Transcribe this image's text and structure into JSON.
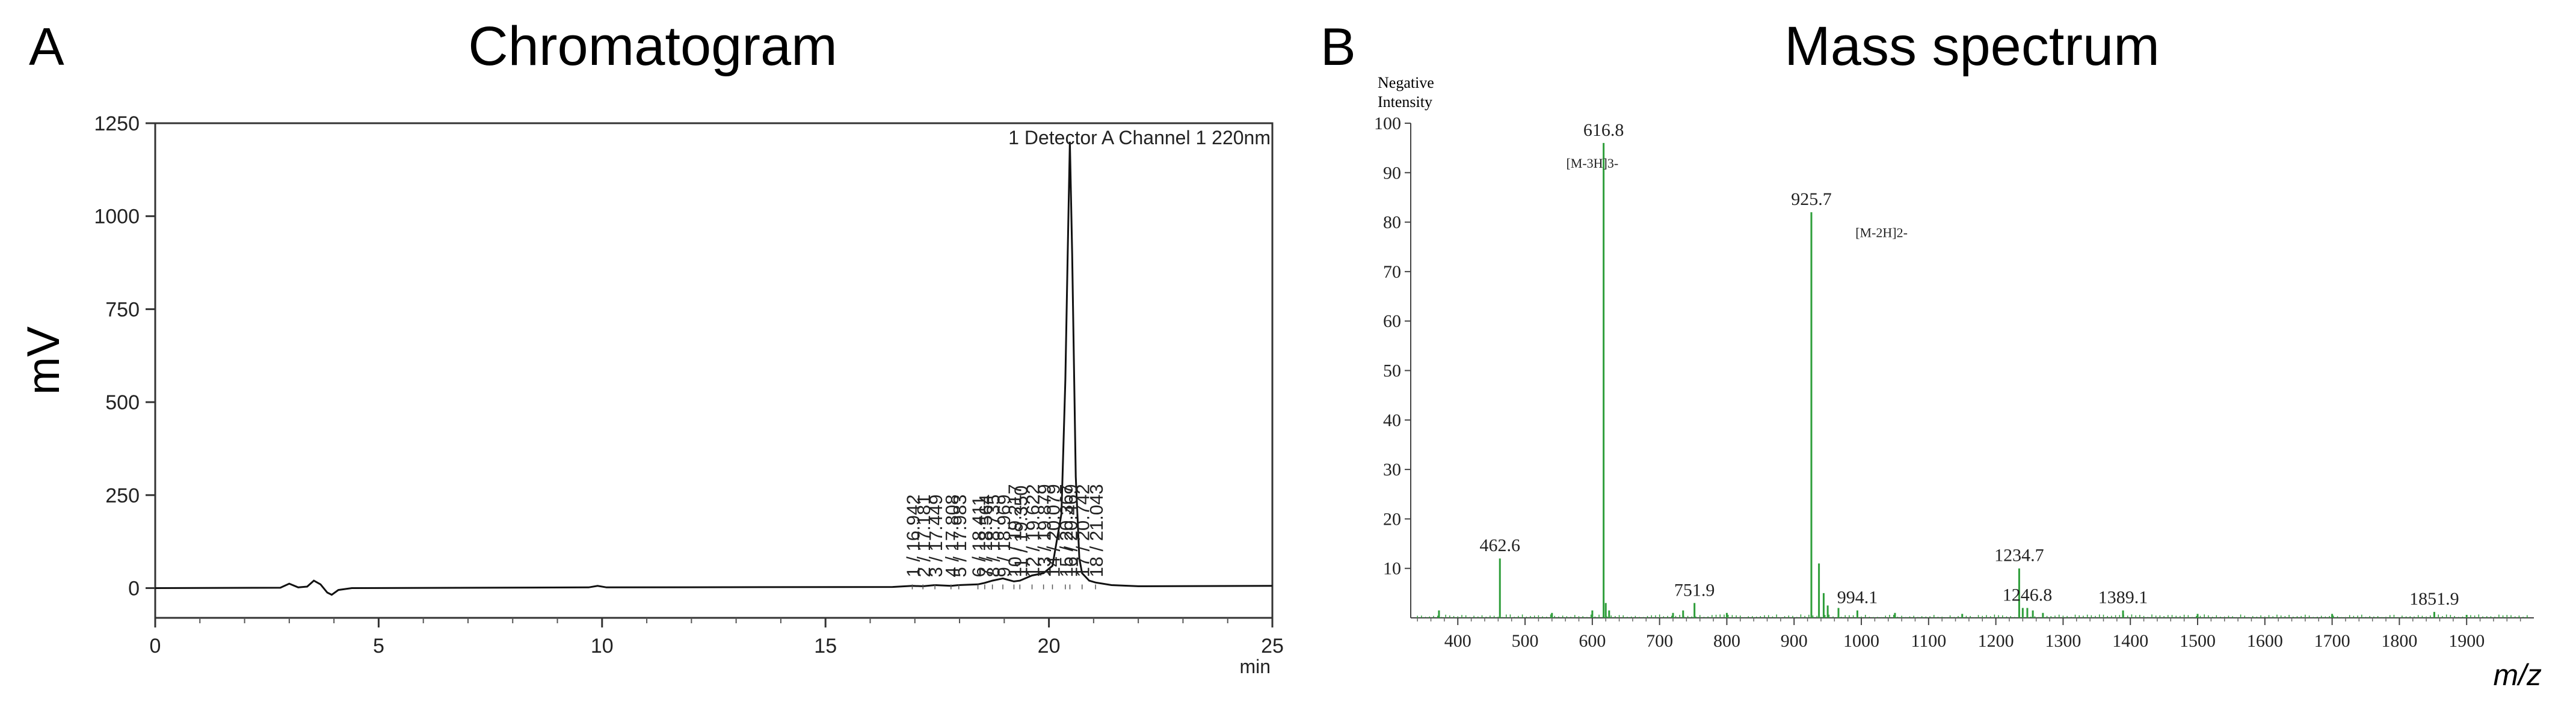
{
  "panel_a": {
    "letter": "A",
    "title": "Chromatogram",
    "ylabel": "mV",
    "xunit": "min",
    "detector": "1 Detector A Channel 1 220nm"
  },
  "panel_b": {
    "letter": "B",
    "title": "Mass spectrum",
    "mode_line1": "Negative",
    "mode_line2": "Intensity",
    "xlabel": "m/z"
  },
  "chart_data": [
    {
      "type": "line",
      "panel": "A",
      "title": "Chromatogram",
      "ylabel": "mV",
      "xlabel": "min",
      "xlim": [
        0,
        25
      ],
      "ylim": [
        -80,
        1250
      ],
      "xticks": [
        0,
        5,
        10,
        15,
        20,
        25
      ],
      "yticks": [
        0,
        250,
        500,
        750,
        1000,
        1250
      ],
      "grid": false,
      "trace": [
        [
          0,
          0
        ],
        [
          2.8,
          1
        ],
        [
          3.0,
          12
        ],
        [
          3.2,
          2
        ],
        [
          3.4,
          4
        ],
        [
          3.55,
          20
        ],
        [
          3.7,
          10
        ],
        [
          3.85,
          -12
        ],
        [
          3.95,
          -18
        ],
        [
          4.1,
          -5
        ],
        [
          4.4,
          0
        ],
        [
          9.7,
          2
        ],
        [
          9.9,
          6
        ],
        [
          10.1,
          2
        ],
        [
          16.5,
          3
        ],
        [
          16.942,
          6
        ],
        [
          17.181,
          5
        ],
        [
          17.449,
          8
        ],
        [
          17.808,
          6
        ],
        [
          17.983,
          8
        ],
        [
          18.411,
          10
        ],
        [
          18.564,
          14
        ],
        [
          18.735,
          20
        ],
        [
          18.969,
          26
        ],
        [
          19.217,
          18
        ],
        [
          19.35,
          20
        ],
        [
          19.622,
          34
        ],
        [
          19.879,
          40
        ],
        [
          20.079,
          60
        ],
        [
          20.28,
          200
        ],
        [
          20.367,
          560
        ],
        [
          20.42,
          900
        ],
        [
          20.469,
          1200
        ],
        [
          20.52,
          900
        ],
        [
          20.6,
          300
        ],
        [
          20.68,
          80
        ],
        [
          20.742,
          40
        ],
        [
          20.9,
          20
        ],
        [
          21.043,
          15
        ],
        [
          21.4,
          8
        ],
        [
          22,
          5
        ],
        [
          25,
          6
        ]
      ],
      "peak_labels": [
        {
          "label": "1 / 16.942",
          "x": 16.942
        },
        {
          "label": "2 / 17.181",
          "x": 17.181
        },
        {
          "label": "3 / 17.449",
          "x": 17.449
        },
        {
          "label": "4 / 17.808",
          "x": 17.808
        },
        {
          "label": "5 / 17.983",
          "x": 17.983
        },
        {
          "label": "6 / 18.411",
          "x": 18.411
        },
        {
          "label": "7 / 18.564",
          "x": 18.564
        },
        {
          "label": "8 / 18.735",
          "x": 18.735
        },
        {
          "label": "9 / 18.969",
          "x": 18.969
        },
        {
          "label": "10 / 19.217",
          "x": 19.217
        },
        {
          "label": "11 / 19.350",
          "x": 19.35
        },
        {
          "label": "12 / 19.622",
          "x": 19.622
        },
        {
          "label": "13 / 19.879",
          "x": 19.879
        },
        {
          "label": "14 / 20.079",
          "x": 20.079
        },
        {
          "label": "15 / 20.367",
          "x": 20.367
        },
        {
          "label": "16 / 20.469",
          "x": 20.469
        },
        {
          "label": "17 / 20.742",
          "x": 20.742
        },
        {
          "label": "18 / 21.043",
          "x": 21.043
        }
      ],
      "annotation": "1 Detector A Channel 1 220nm"
    },
    {
      "type": "bar",
      "panel": "B",
      "title": "Mass spectrum",
      "ylabel": "Negative Intensity",
      "xlabel": "m/z",
      "xlim": [
        330,
        2000
      ],
      "ylim": [
        0,
        100
      ],
      "xticks": [
        400,
        500,
        600,
        700,
        800,
        900,
        1000,
        1100,
        1200,
        1300,
        1400,
        1500,
        1600,
        1700,
        1800,
        1900
      ],
      "yticks": [
        10,
        20,
        30,
        40,
        50,
        60,
        70,
        80,
        90,
        100
      ],
      "grid": false,
      "color": "#2e9e3a",
      "peaks": [
        {
          "mz": 372,
          "intensity": 1.5
        },
        {
          "mz": 462.6,
          "intensity": 12,
          "label": "462.6"
        },
        {
          "mz": 540,
          "intensity": 1
        },
        {
          "mz": 600,
          "intensity": 1.5
        },
        {
          "mz": 616.8,
          "intensity": 96,
          "label": "616.8"
        },
        {
          "mz": 620,
          "intensity": 3
        },
        {
          "mz": 625,
          "intensity": 1.5
        },
        {
          "mz": 720,
          "intensity": 1
        },
        {
          "mz": 735,
          "intensity": 1.5
        },
        {
          "mz": 751.9,
          "intensity": 3,
          "label": "751.9"
        },
        {
          "mz": 800,
          "intensity": 1
        },
        {
          "mz": 925.7,
          "intensity": 82,
          "label": "925.7"
        },
        {
          "mz": 937,
          "intensity": 11
        },
        {
          "mz": 944,
          "intensity": 5
        },
        {
          "mz": 950,
          "intensity": 2.5
        },
        {
          "mz": 966,
          "intensity": 2
        },
        {
          "mz": 994.1,
          "intensity": 1.5,
          "label": "994.1"
        },
        {
          "mz": 1050,
          "intensity": 1
        },
        {
          "mz": 1150,
          "intensity": 0.8
        },
        {
          "mz": 1234.7,
          "intensity": 10,
          "label": "1234.7"
        },
        {
          "mz": 1240,
          "intensity": 2
        },
        {
          "mz": 1246.8,
          "intensity": 2,
          "label": "1246.8"
        },
        {
          "mz": 1255,
          "intensity": 1.5
        },
        {
          "mz": 1270,
          "intensity": 1
        },
        {
          "mz": 1389.1,
          "intensity": 1.5,
          "label": "1389.1"
        },
        {
          "mz": 1500,
          "intensity": 0.8
        },
        {
          "mz": 1700,
          "intensity": 0.8
        },
        {
          "mz": 1851.9,
          "intensity": 1.2,
          "label": "1851.9"
        },
        {
          "mz": 1900,
          "intensity": 0.6
        }
      ],
      "annotations": [
        {
          "text": "[M-3H]3-",
          "x": 600,
          "y": 91
        },
        {
          "text": "[M-2H]2-",
          "x": 1030,
          "y": 77
        }
      ]
    }
  ]
}
